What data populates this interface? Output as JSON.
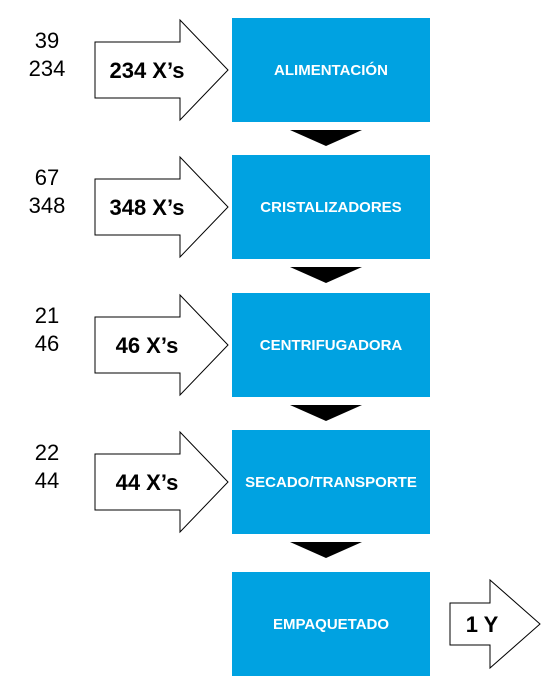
{
  "steps": [
    {
      "top": "39",
      "bottom": "234",
      "arrow": "234 X’s",
      "box": "ALIMENTACIÓN"
    },
    {
      "top": "67",
      "bottom": "348",
      "arrow": "348 X’s",
      "box": "CRISTALIZADORES"
    },
    {
      "top": "21",
      "bottom": "46",
      "arrow": "46 X’s",
      "box": "CENTRIFUGADORA"
    },
    {
      "top": "22",
      "bottom": "44",
      "arrow": "44 X’s",
      "box": "SECADO/TRANSPORTE"
    }
  ],
  "final": {
    "box": "EMPAQUETADO",
    "arrow": "1 Y"
  }
}
